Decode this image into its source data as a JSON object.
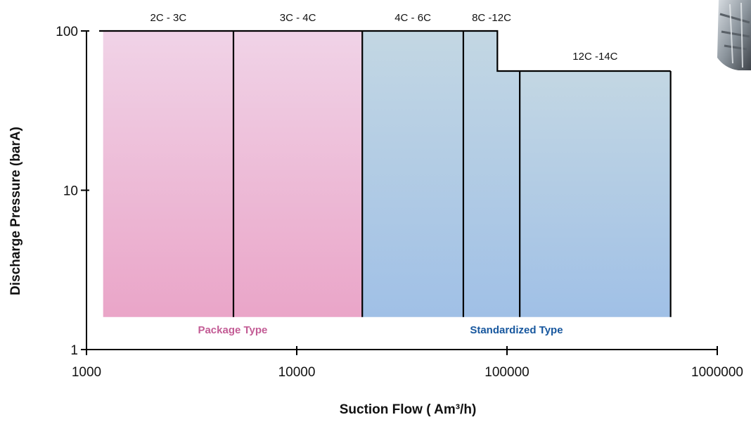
{
  "chart_data": {
    "type": "area",
    "x_scale": "log",
    "y_scale": "log",
    "xlim": [
      1000,
      1000000
    ],
    "ylim": [
      1,
      100
    ],
    "x_ticks": [
      {
        "value": 1000,
        "label": "1000"
      },
      {
        "value": 10000,
        "label": "10000"
      },
      {
        "value": 100000,
        "label": "100000"
      },
      {
        "value": 1000000,
        "label": "1000000"
      }
    ],
    "y_ticks": [
      {
        "value": 1,
        "label": "1"
      },
      {
        "value": 10,
        "label": "10"
      },
      {
        "value": 100,
        "label": "100"
      }
    ],
    "xlabel": "Suction Flow ( Am³/h)",
    "ylabel": "Discharge Pressure (barA)",
    "grid": false,
    "regions": [
      {
        "label": "2C - 3C",
        "group": "package",
        "x_min": 1200,
        "x_max": 5000,
        "y_min": 1.6,
        "y_max": 100
      },
      {
        "label": "3C - 4C",
        "group": "package",
        "x_min": 5000,
        "x_max": 20500,
        "y_min": 1.6,
        "y_max": 100
      },
      {
        "label": "4C - 6C",
        "group": "standardized",
        "x_min": 20500,
        "x_max": 62000,
        "y_min": 1.6,
        "y_max": 100
      },
      {
        "label": "8C -12C",
        "group": "standardized",
        "x_min": 62000,
        "x_max": 115000,
        "y_min": 1.6,
        "y_max": 100,
        "step": {
          "x": 90000,
          "y": 56
        }
      },
      {
        "label": "12C -14C",
        "group": "standardized",
        "x_min": 115000,
        "x_max": 600000,
        "y_min": 1.6,
        "y_max": 56
      }
    ],
    "groups": [
      {
        "key": "package",
        "label": "Package Type",
        "color": "#c35c95",
        "fill_top": "#f0d3e7",
        "fill_bottom": "#eaa5c8"
      },
      {
        "key": "standardized",
        "label": "Standardized Type",
        "color": "#17579e",
        "fill_top": "#c3d7e3",
        "fill_bottom": "#a0c0e6"
      }
    ]
  }
}
